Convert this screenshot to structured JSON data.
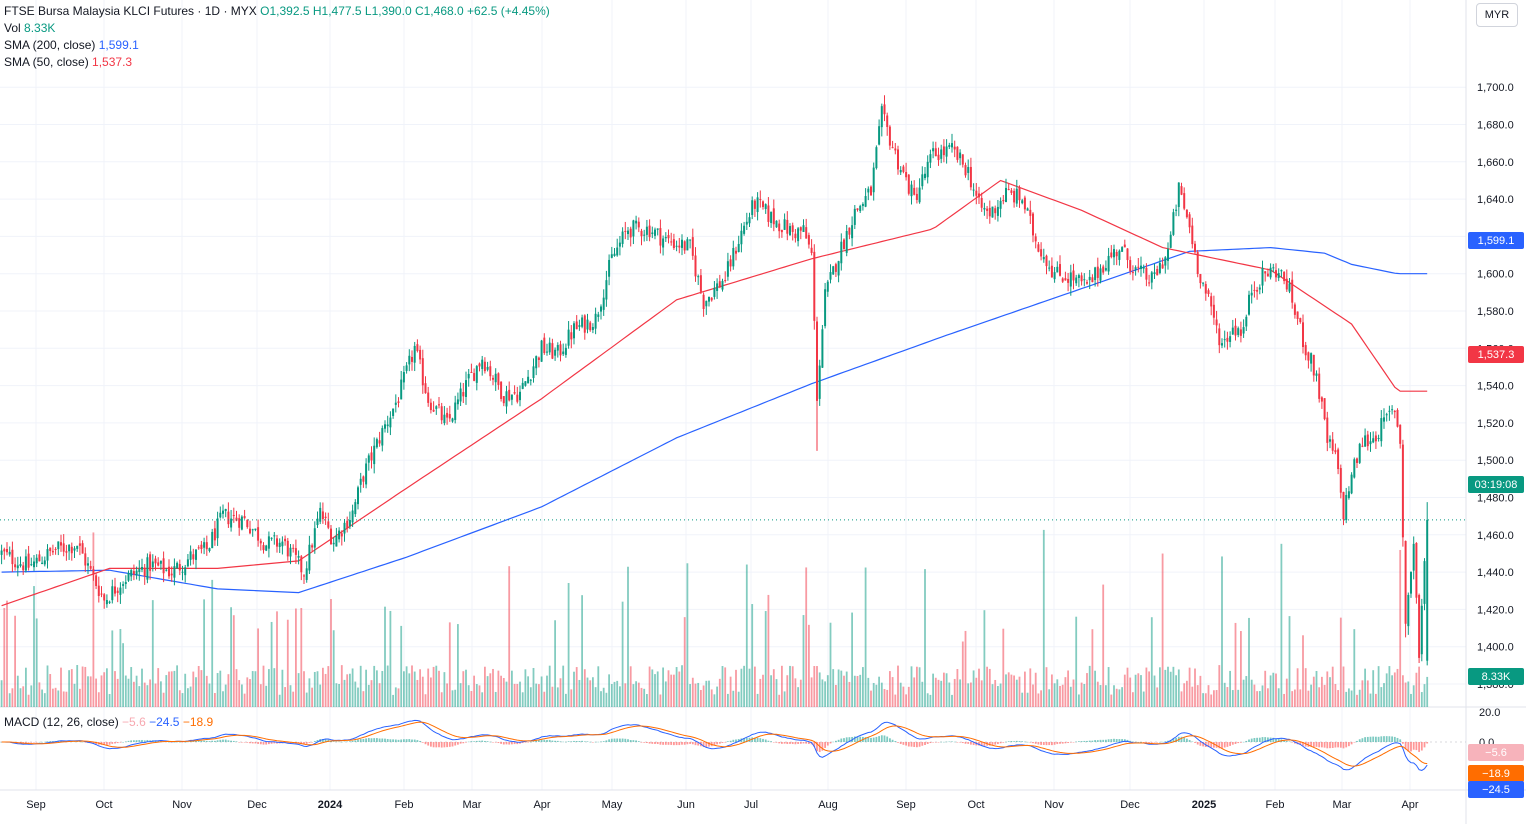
{
  "header": {
    "symbol": "FTSE Bursa Malaysia KLCI Futures",
    "interval": "1D",
    "exchange": "MYX",
    "open": "O1,392.5",
    "high": "H1,477.5",
    "low": "L1,390.0",
    "close": "C1,468.0",
    "change": "+62.5 (+4.45%)",
    "currency": "MYR"
  },
  "legend": {
    "vol_label": "Vol",
    "vol_value": "8.33K",
    "sma200_label": "SMA (200, close)",
    "sma200_value": "1,599.1",
    "sma50_label": "SMA (50, close)",
    "sma50_value": "1,537.3",
    "macd_label": "MACD (12, 26, close)",
    "macd_hist": "−5.6",
    "macd_line": "−24.5",
    "macd_signal": "−18.9"
  },
  "badges": {
    "sma200": "1,599.1",
    "sma50": "1,537.3",
    "countdown": "03:19:08",
    "volume": "8.33K",
    "macd_hist": "−5.6",
    "macd_signal": "−18.9",
    "macd_line": "−24.5"
  },
  "colors": {
    "up": "#089981",
    "down": "#f23645",
    "sma200": "#2962ff",
    "sma50": "#f23645",
    "macd_line": "#2962ff",
    "signal_line": "#ff6d00"
  },
  "chart_data": {
    "type": "candlestick",
    "price_axis": {
      "ticks": [
        "1,380.0",
        "1,400.0",
        "1,420.0",
        "1,440.0",
        "1,460.0",
        "1,480.0",
        "1,500.0",
        "1,520.0",
        "1,540.0",
        "1,560.0",
        "1,580.0",
        "1,600.0",
        "1,620.0",
        "1,640.0",
        "1,660.0",
        "1,680.0",
        "1,700.0"
      ],
      "tick_values": [
        1380,
        1400,
        1420,
        1440,
        1460,
        1480,
        1500,
        1520,
        1540,
        1560,
        1580,
        1600,
        1620,
        1640,
        1660,
        1680,
        1700
      ],
      "range": [
        1360,
        1717
      ]
    },
    "time_axis": [
      "Sep",
      "Oct",
      "Nov",
      "Dec",
      "2024",
      "Feb",
      "Mar",
      "Apr",
      "May",
      "Jun",
      "Jul",
      "Aug",
      "Sep",
      "Oct",
      "Nov",
      "Dec",
      "2025",
      "Feb",
      "Mar",
      "Apr"
    ],
    "time_axis_bold": [
      "2024",
      "2025"
    ],
    "price_anchors": [
      [
        0,
        1450
      ],
      [
        10,
        1443
      ],
      [
        20,
        1452
      ],
      [
        28,
        1455
      ],
      [
        38,
        1425
      ],
      [
        45,
        1436
      ],
      [
        55,
        1444
      ],
      [
        63,
        1440
      ],
      [
        70,
        1448
      ],
      [
        76,
        1452
      ],
      [
        82,
        1470
      ],
      [
        90,
        1468
      ],
      [
        98,
        1455
      ],
      [
        104,
        1456
      ],
      [
        112,
        1440
      ],
      [
        118,
        1472
      ],
      [
        123,
        1457
      ],
      [
        130,
        1472
      ],
      [
        134,
        1492
      ],
      [
        140,
        1512
      ],
      [
        147,
        1534
      ],
      [
        153,
        1560
      ],
      [
        158,
        1533
      ],
      [
        165,
        1519
      ],
      [
        172,
        1540
      ],
      [
        178,
        1555
      ],
      [
        186,
        1535
      ],
      [
        192,
        1536
      ],
      [
        200,
        1560
      ],
      [
        206,
        1557
      ],
      [
        212,
        1570
      ],
      [
        220,
        1576
      ],
      [
        226,
        1608
      ],
      [
        232,
        1624
      ],
      [
        240,
        1624
      ],
      [
        246,
        1618
      ],
      [
        255,
        1614
      ],
      [
        260,
        1585
      ],
      [
        268,
        1598
      ],
      [
        274,
        1622
      ],
      [
        279,
        1638
      ],
      [
        285,
        1630
      ],
      [
        290,
        1625
      ],
      [
        293,
        1622
      ],
      [
        297,
        1623
      ],
      [
        300,
        1610
      ],
      [
        302,
        1535
      ],
      [
        305,
        1588
      ],
      [
        310,
        1610
      ],
      [
        316,
        1633
      ],
      [
        322,
        1644
      ],
      [
        326,
        1685
      ],
      [
        332,
        1660
      ],
      [
        338,
        1640
      ],
      [
        345,
        1664
      ],
      [
        352,
        1666
      ],
      [
        358,
        1655
      ],
      [
        362,
        1636
      ],
      [
        366,
        1632
      ],
      [
        372,
        1643
      ],
      [
        378,
        1640
      ],
      [
        383,
        1618
      ],
      [
        390,
        1600
      ],
      [
        396,
        1598
      ],
      [
        402,
        1593
      ],
      [
        408,
        1605
      ],
      [
        414,
        1614
      ],
      [
        420,
        1602
      ],
      [
        426,
        1596
      ],
      [
        432,
        1612
      ],
      [
        436,
        1645
      ],
      [
        440,
        1625
      ],
      [
        443,
        1604
      ],
      [
        448,
        1580
      ],
      [
        452,
        1562
      ],
      [
        456,
        1571
      ],
      [
        460,
        1570
      ],
      [
        463,
        1592
      ],
      [
        468,
        1600
      ],
      [
        472,
        1602
      ],
      [
        476,
        1595
      ],
      [
        479,
        1580
      ],
      [
        483,
        1560
      ],
      [
        487,
        1545
      ],
      [
        491,
        1510
      ],
      [
        494,
        1502
      ],
      [
        497,
        1472
      ],
      [
        500,
        1492
      ],
      [
        504,
        1510
      ],
      [
        508,
        1512
      ],
      [
        512,
        1520
      ],
      [
        516,
        1528
      ],
      [
        518,
        1510
      ],
      [
        520,
        1412
      ],
      [
        523,
        1456
      ],
      [
        525,
        1395
      ],
      [
        528,
        1468
      ]
    ],
    "sma200_anchors": [
      [
        0,
        1440
      ],
      [
        40,
        1441
      ],
      [
        80,
        1431
      ],
      [
        110,
        1429
      ],
      [
        150,
        1448
      ],
      [
        200,
        1475
      ],
      [
        250,
        1512
      ],
      [
        300,
        1541
      ],
      [
        350,
        1567
      ],
      [
        400,
        1592
      ],
      [
        440,
        1612
      ],
      [
        470,
        1614
      ],
      [
        490,
        1611
      ],
      [
        500,
        1605
      ],
      [
        517,
        1600
      ]
    ],
    "sma50_anchors": [
      [
        0,
        1422
      ],
      [
        40,
        1442
      ],
      [
        80,
        1442
      ],
      [
        110,
        1446
      ],
      [
        150,
        1485
      ],
      [
        200,
        1533
      ],
      [
        250,
        1586
      ],
      [
        300,
        1608
      ],
      [
        345,
        1624
      ],
      [
        370,
        1650
      ],
      [
        400,
        1634
      ],
      [
        430,
        1614
      ],
      [
        470,
        1602
      ],
      [
        500,
        1573
      ],
      [
        517,
        1537
      ]
    ],
    "volume_axis": {
      "scale_ticks": [
        "8.33K",
        "20.0"
      ]
    }
  }
}
